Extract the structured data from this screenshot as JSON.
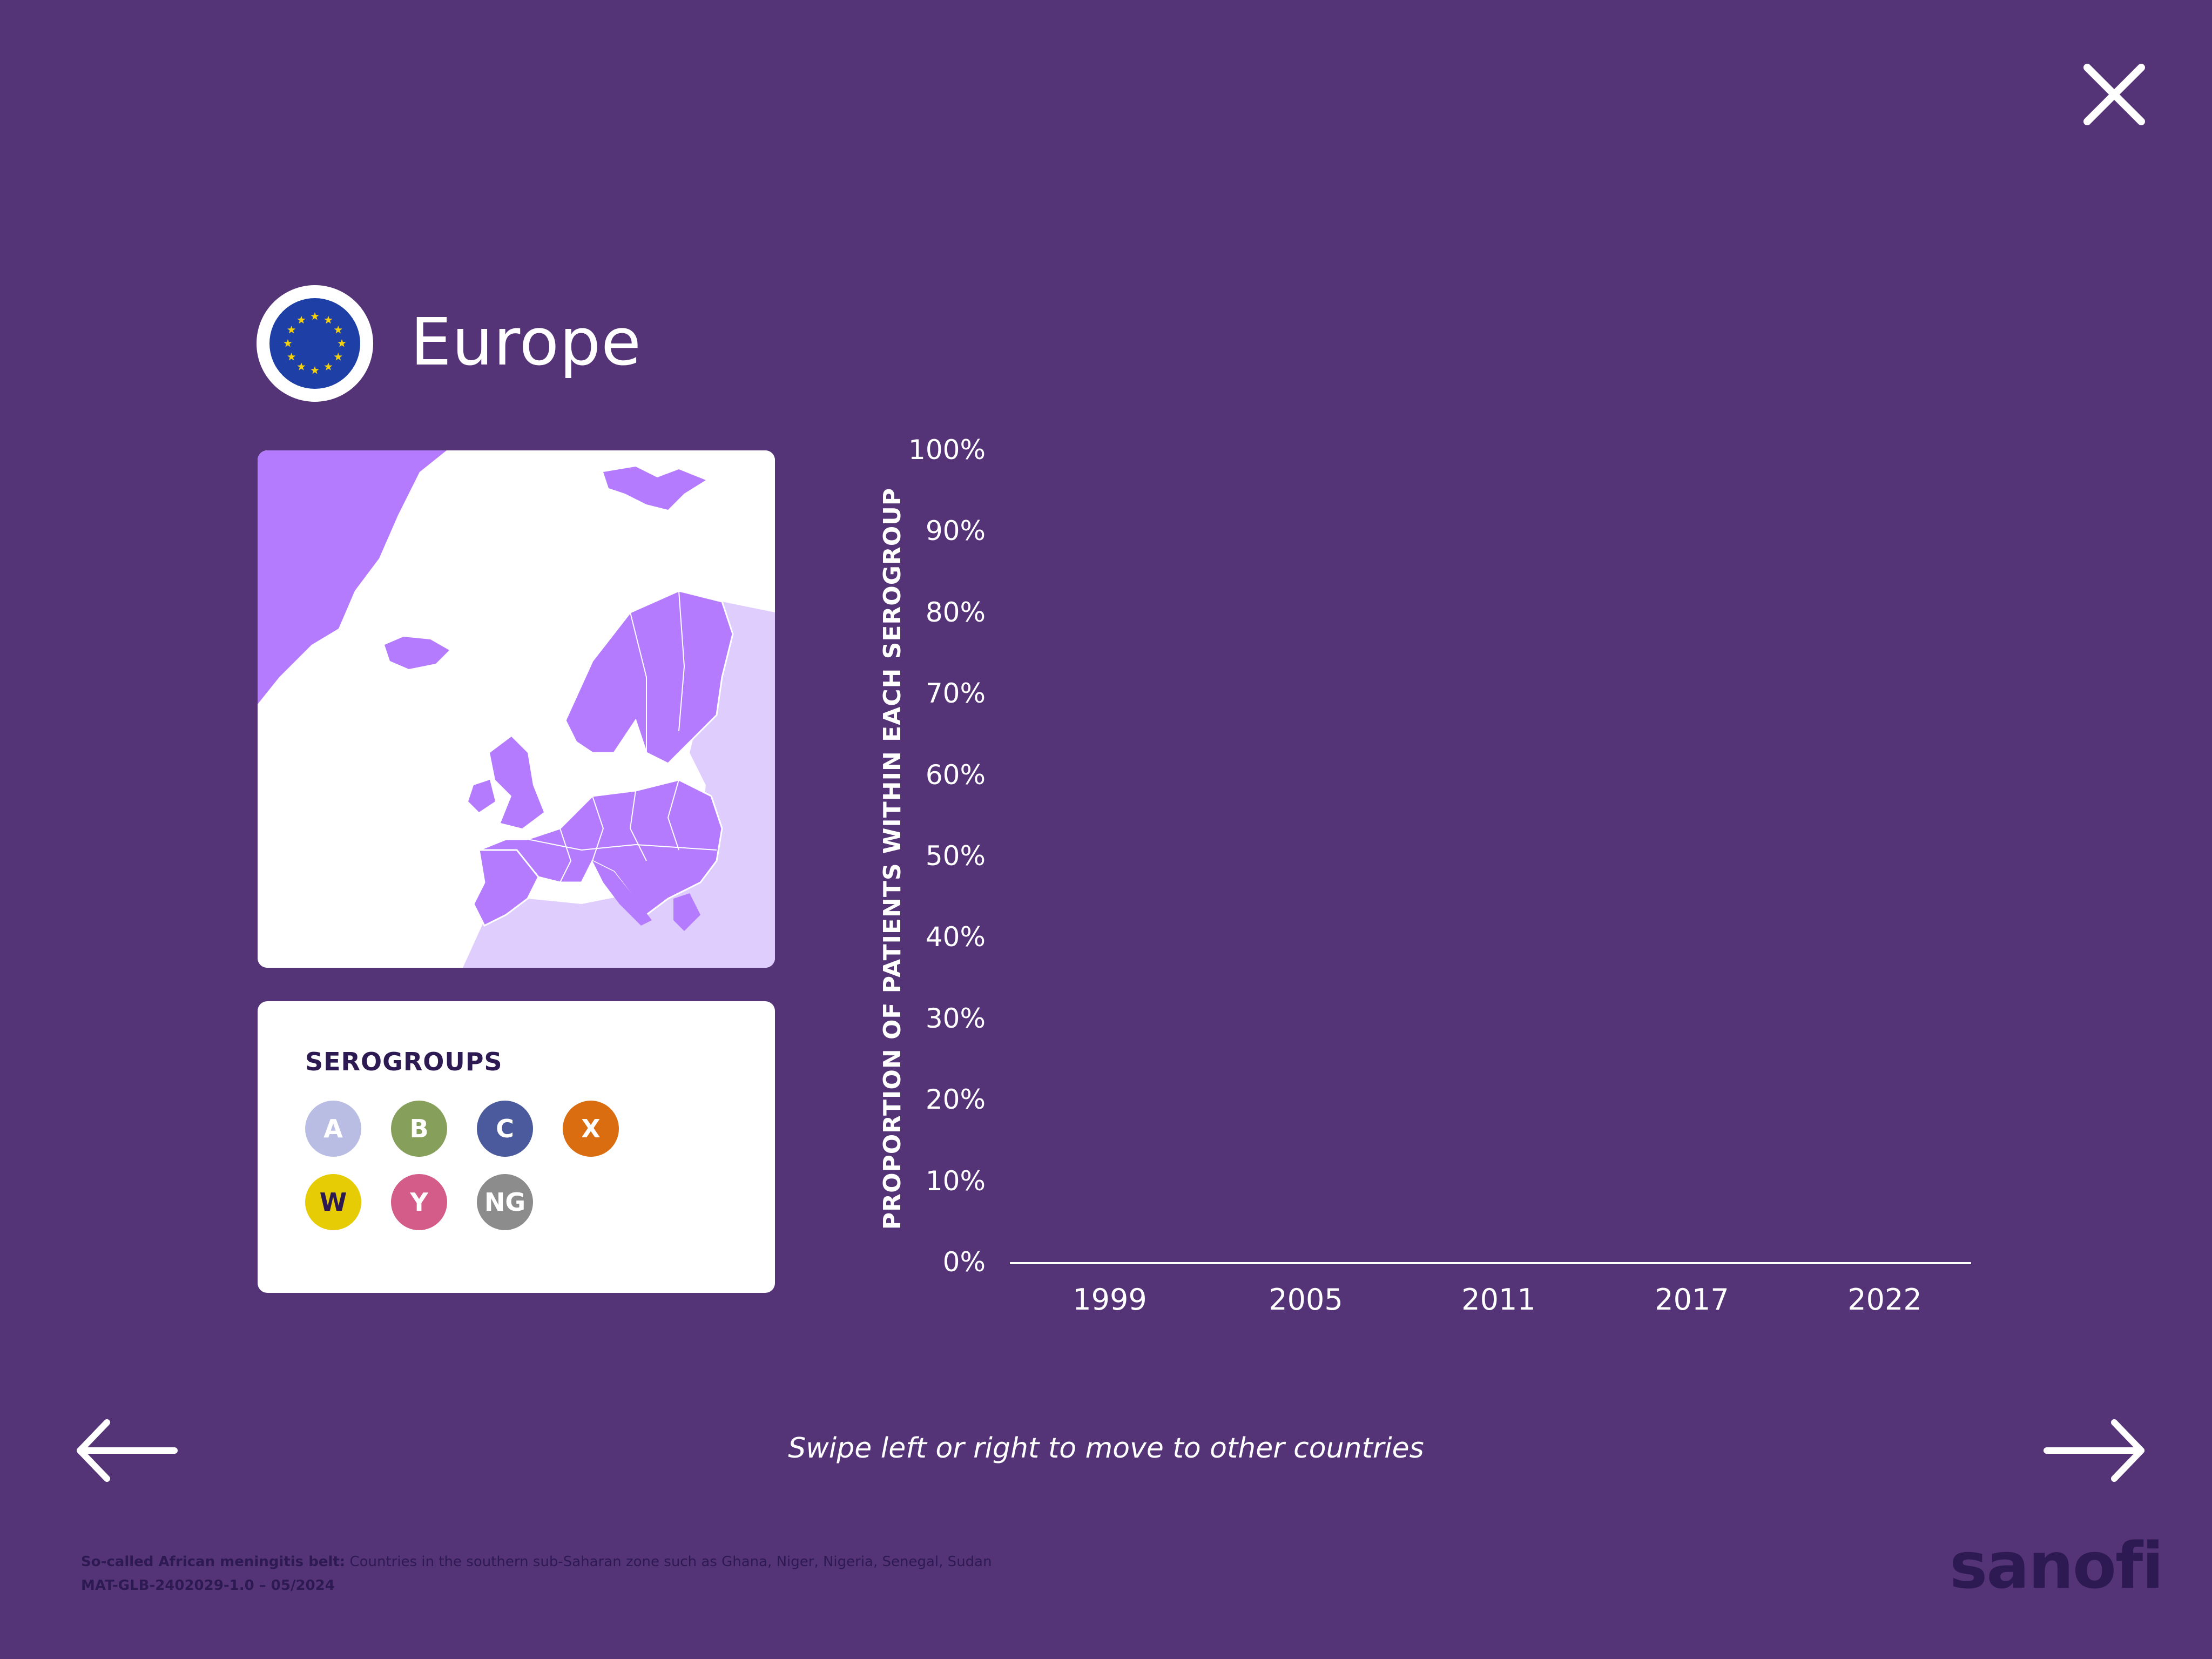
{
  "header": {
    "title": "Europe",
    "flag_icon": "eu-flag-icon"
  },
  "legend": {
    "title": "SEROGROUPS",
    "items": [
      {
        "label": "A",
        "color": "#b9bde4"
      },
      {
        "label": "B",
        "color": "#86a05c"
      },
      {
        "label": "C",
        "color": "#4a5a9c"
      },
      {
        "label": "X",
        "color": "#da6d0f"
      },
      {
        "label": "W",
        "color": "#e6cc05"
      },
      {
        "label": "Y",
        "color": "#d45c88"
      },
      {
        "label": "NG",
        "color": "#8c8c8c"
      }
    ]
  },
  "chart_data": {
    "type": "bar",
    "categories": [
      "1999",
      "2005",
      "2011",
      "2017",
      "2022"
    ],
    "series": [],
    "ylabel": "PROPORTION OF  PATIENTS WITHIN EACH  SEROGROUP",
    "ylim": [
      0,
      100
    ],
    "yticks": [
      "0%",
      "10%",
      "20%",
      "30%",
      "40%",
      "50%",
      "60%",
      "70%",
      "80%",
      "90%",
      "100%"
    ]
  },
  "nav": {
    "hint": "Swipe left or right to move to other countries"
  },
  "footer": {
    "note_bold": "So-called African meningitis belt:",
    "note_text": " Countries in the southern sub-Saharan zone such as Ghana, Niger, Nigeria, Senegal, Sudan",
    "code": "MAT-GLB-2402029-1.0 – 05/2024",
    "logo": "sanofi"
  },
  "colors": {
    "background": "#543477",
    "map_highlight": "#b57bff",
    "map_other": "#dfcdfd",
    "dark_text": "#2e1a52"
  }
}
